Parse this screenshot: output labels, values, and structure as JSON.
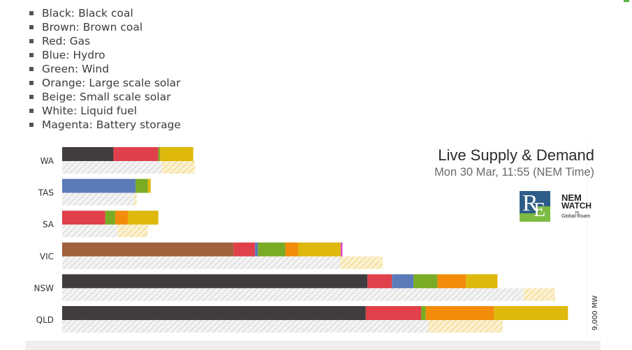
{
  "legend": [
    "Black: Black coal",
    "Brown: Brown coal",
    "Red: Gas",
    "Blue: Hydro",
    "Green: Wind",
    "Orange: Large scale solar",
    "Beige: Small scale solar",
    "White: Liquid fuel",
    "Magenta: Battery storage"
  ],
  "chart_data": {
    "type": "bar",
    "orientation": "horizontal",
    "stacked": true,
    "title": "Live Supply & Demand",
    "subtitle": "Mon 30 Mar, 11:55 (NEM Time)",
    "x_unit_label": "9,000 MW",
    "xlim": [
      0,
      9000
    ],
    "categories": [
      "WA",
      "TAS",
      "SA",
      "VIC",
      "NSW",
      "QLD"
    ],
    "supply_series": [
      {
        "fuel": "Black coal",
        "color": "#403c3f",
        "values": [
          880,
          0,
          0,
          0,
          5240,
          5210
        ]
      },
      {
        "fuel": "Brown coal",
        "color": "#a0603c",
        "values": [
          0,
          0,
          0,
          2940,
          0,
          0
        ]
      },
      {
        "fuel": "Gas",
        "color": "#e0404a",
        "values": [
          770,
          0,
          740,
          370,
          420,
          950
        ]
      },
      {
        "fuel": "Hydro",
        "color": "#5a7ab8",
        "values": [
          0,
          1260,
          0,
          50,
          370,
          0
        ]
      },
      {
        "fuel": "Wind",
        "color": "#7aab24",
        "values": [
          30,
          210,
          170,
          470,
          410,
          80
        ]
      },
      {
        "fuel": "Large scale solar",
        "color": "#f28c0a",
        "values": [
          0,
          0,
          220,
          220,
          490,
          1170
        ]
      },
      {
        "fuel": "Small scale solar",
        "color": "#deb80a",
        "values": [
          570,
          50,
          520,
          730,
          540,
          1270
        ]
      },
      {
        "fuel": "Liquid fuel",
        "color": "#ffffff",
        "values": [
          0,
          0,
          0,
          0,
          0,
          0
        ]
      },
      {
        "fuel": "Battery storage",
        "color": "#e23fd3",
        "values": [
          0,
          0,
          0,
          30,
          0,
          0
        ]
      }
    ],
    "demand_series": [
      {
        "name": "Operational demand",
        "color": "#e2e2e2",
        "values": [
          1710,
          1230,
          950,
          4770,
          7920,
          6290
        ]
      },
      {
        "name": "Small scale solar",
        "color": "#f5e2a4",
        "values": [
          570,
          50,
          520,
          730,
          540,
          1270
        ]
      }
    ],
    "colors": {
      "demand_hatch": "#e2e2e2",
      "rooftop_hatch": "#f5e2a4"
    }
  },
  "logos": {
    "re_mark": {
      "r": "R",
      "e": "E"
    },
    "nem_watch": {
      "line1": "NEM",
      "line2": "WATCH",
      "by": "by",
      "company": "Global-Roam"
    }
  }
}
